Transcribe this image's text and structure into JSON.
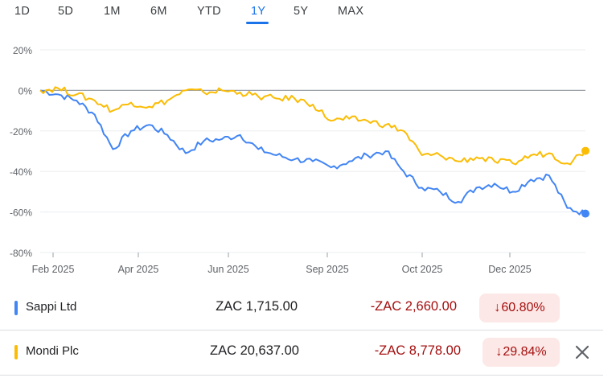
{
  "tabs": [
    "1D",
    "5D",
    "1M",
    "6M",
    "YTD",
    "1Y",
    "5Y",
    "MAX"
  ],
  "active_tab": "1Y",
  "colors": {
    "series_a": "#4285f4",
    "series_b": "#fbbc04",
    "negative": "#a50e0e",
    "negative_bg": "#fce8e6",
    "accent": "#1a73e8"
  },
  "chart_data": {
    "type": "line",
    "ylim": [
      -80,
      20
    ],
    "yticks": [
      20,
      0,
      -20,
      -40,
      -60,
      -80
    ],
    "ytick_labels": [
      "20%",
      "0%",
      "-20%",
      "-40%",
      "-60%",
      "-80%"
    ],
    "xtick_labels": [
      "Feb 2025",
      "Apr 2025",
      "Jun 2025",
      "Sep 2025",
      "Oct 2025",
      "Dec 2025"
    ],
    "x": [
      "Jan 2025",
      "Feb 2025",
      "Feb 2025",
      "Mar 2025",
      "Mar 2025",
      "Mar 2025",
      "Apr 2025",
      "Apr 2025",
      "May 2025",
      "May 2025",
      "May 2025",
      "Jun 2025",
      "Jun 2025",
      "Jul 2025",
      "Jul 2025",
      "Jul 2025",
      "Aug 2025",
      "Aug 2025",
      "Sep 2025",
      "Sep 2025",
      "Sep 2025",
      "Sep 2025",
      "Oct 2025",
      "Oct 2025",
      "Oct 2025",
      "Nov 2025",
      "Nov 2025",
      "Nov 2025",
      "Dec 2025",
      "Dec 2025",
      "Jan 2026"
    ],
    "series": [
      {
        "name": "Sappi Ltd",
        "values": [
          0,
          -2,
          -5,
          -12,
          -29,
          -20,
          -17,
          -22,
          -31,
          -25,
          -24,
          -22,
          -29,
          -32,
          -34,
          -35,
          -38,
          -35,
          -32,
          -30,
          -40,
          -48,
          -50,
          -55,
          -48,
          -46,
          -50,
          -44,
          -42,
          -58,
          -60.8
        ]
      },
      {
        "name": "Mondi Plc",
        "values": [
          0,
          1,
          -2,
          -5,
          -10,
          -6,
          -8,
          -5,
          0,
          -1,
          0,
          -1,
          -3,
          -4,
          -4,
          -7,
          -15,
          -14,
          -15,
          -17,
          -20,
          -32,
          -32,
          -35,
          -33,
          -35,
          -36,
          -32,
          -31,
          -36,
          -29.84
        ]
      }
    ],
    "grid": true
  },
  "rows": [
    {
      "name": "Sappi Ltd",
      "price": "ZAC 1,715.00",
      "change": "-ZAC 2,660.00",
      "pct": "60.80%",
      "arrow": "↓"
    },
    {
      "name": "Mondi Plc",
      "price": "ZAC 20,637.00",
      "change": "-ZAC 8,778.00",
      "pct": "29.84%",
      "arrow": "↓",
      "remove_icon": "close-icon"
    }
  ]
}
